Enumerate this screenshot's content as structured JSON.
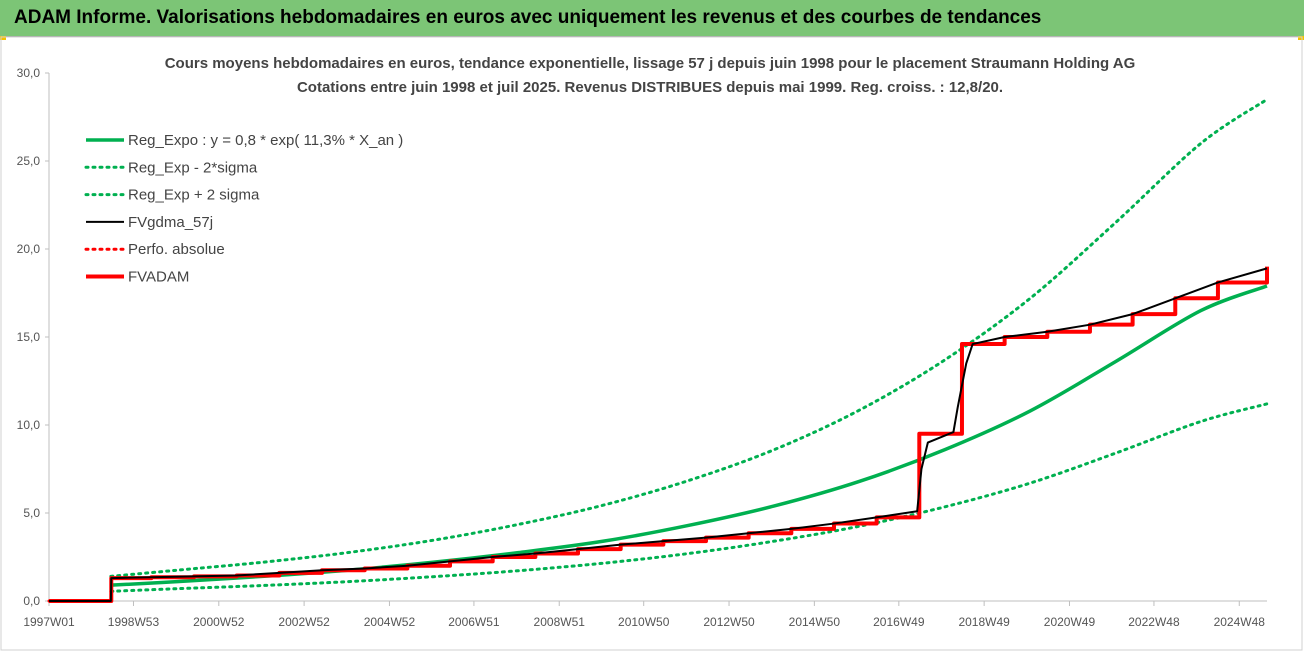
{
  "banner": {
    "title": "ADAM Informe. Valorisations hebdomadaires en euros avec uniquement les revenus et des courbes de tendances"
  },
  "colors": {
    "banner_bg": "#7cc576",
    "regression": "#00b050",
    "price": "#000000",
    "adam": "#ff0000"
  },
  "chart_data": {
    "type": "line",
    "title_lines": [
      "Cours moyens hebdomadaires en euros, tendance exponentielle, lissage 57 j depuis juin 1998 pour le placement Straumann Holding AG",
      "Cotations entre juin 1998 et juil 2025.  Revenus DISTRIBUES depuis mai 1999. Reg. croiss. : 12,8/20."
    ],
    "xlabel": "",
    "ylabel": "",
    "ylim": [
      0,
      30
    ],
    "xlim": [
      1997.0,
      2025.55
    ],
    "y_ticks": [
      "0,0",
      "5,0",
      "10,0",
      "15,0",
      "20,0",
      "25,0",
      "30,0"
    ],
    "x_ticks": [
      {
        "label": "1997W01",
        "x": 1997.0
      },
      {
        "label": "1998W53",
        "x": 1998.98
      },
      {
        "label": "2000W52",
        "x": 2000.98
      },
      {
        "label": "2002W52",
        "x": 2002.98
      },
      {
        "label": "2004W52",
        "x": 2004.98
      },
      {
        "label": "2006W51",
        "x": 2006.96
      },
      {
        "label": "2008W51",
        "x": 2008.96
      },
      {
        "label": "2010W50",
        "x": 2010.94
      },
      {
        "label": "2012W50",
        "x": 2012.94
      },
      {
        "label": "2014W50",
        "x": 2014.94
      },
      {
        "label": "2016W49",
        "x": 2016.92
      },
      {
        "label": "2018W49",
        "x": 2018.92
      },
      {
        "label": "2020W49",
        "x": 2020.92
      },
      {
        "label": "2022W48",
        "x": 2022.9
      },
      {
        "label": "2024W48",
        "x": 2024.9
      }
    ],
    "grid": false,
    "legend_position": "top-left",
    "series": [
      {
        "name": "Reg_Expo : y = 0,8 * exp( 11,3% *  X_an )",
        "style": "solid-thick",
        "color": "#00b050",
        "x": [
          1998.45,
          2000,
          2002,
          2004,
          2006,
          2008,
          2010,
          2012,
          2014,
          2016,
          2018,
          2020,
          2022,
          2024,
          2025.55
        ],
        "y": [
          0.9,
          1.1,
          1.4,
          1.75,
          2.2,
          2.75,
          3.4,
          4.3,
          5.4,
          6.8,
          8.6,
          10.8,
          13.6,
          16.5,
          17.9
        ]
      },
      {
        "name": "Reg_Exp - 2*sigma",
        "style": "dotted",
        "color": "#00b050",
        "x": [
          1998.45,
          2000,
          2002,
          2004,
          2006,
          2008,
          2010,
          2012,
          2014,
          2016,
          2018,
          2020,
          2022,
          2024,
          2025.55
        ],
        "y": [
          0.55,
          0.7,
          0.88,
          1.1,
          1.38,
          1.72,
          2.15,
          2.7,
          3.4,
          4.25,
          5.35,
          6.7,
          8.4,
          10.2,
          11.2
        ]
      },
      {
        "name": "Reg_Exp + 2 sigma",
        "style": "dotted",
        "color": "#00b050",
        "x": [
          1998.45,
          2000,
          2002,
          2004,
          2006,
          2008,
          2010,
          2012,
          2014,
          2016,
          2018,
          2020,
          2022,
          2024,
          2025.55
        ],
        "y": [
          1.4,
          1.75,
          2.2,
          2.75,
          3.45,
          4.35,
          5.45,
          6.85,
          8.6,
          10.85,
          13.7,
          17.2,
          21.5,
          26.0,
          28.5
        ]
      },
      {
        "name": "FVgdma_57j",
        "style": "solid",
        "color": "#000000",
        "x": [
          1997.0,
          1998.45,
          1998.46,
          1999.4,
          2000.4,
          2001.4,
          2002.4,
          2003.4,
          2004.4,
          2005.4,
          2006.4,
          2007.4,
          2008.4,
          2009.4,
          2010.4,
          2011.4,
          2012.4,
          2013.4,
          2014.4,
          2015.4,
          2016.4,
          2017.35,
          2017.45,
          2017.6,
          2018.2,
          2018.3,
          2018.5,
          2018.65,
          2019.4,
          2020.4,
          2021.4,
          2022.4,
          2023.4,
          2024.4,
          2025.55
        ],
        "y": [
          0.0,
          0.0,
          1.3,
          1.35,
          1.4,
          1.45,
          1.6,
          1.75,
          1.85,
          2.0,
          2.25,
          2.5,
          2.7,
          2.95,
          3.2,
          3.4,
          3.6,
          3.85,
          4.1,
          4.4,
          4.75,
          5.1,
          7.5,
          9.0,
          9.6,
          11.0,
          13.5,
          14.6,
          15.0,
          15.3,
          15.7,
          16.3,
          17.2,
          18.1,
          18.9
        ]
      },
      {
        "name": "Perfo. absolue",
        "style": "dotted",
        "color": "#ff0000",
        "x": [
          1997.0,
          1998.45,
          1998.46,
          1999.4,
          2000.4,
          2001.4,
          2002.4,
          2003.4,
          2004.4,
          2005.4,
          2006.4,
          2007.4,
          2008.4,
          2009.4,
          2010.4,
          2011.4,
          2012.4,
          2013.4,
          2014.4,
          2015.4,
          2016.4,
          2017.4,
          2018.4,
          2019.4,
          2020.4,
          2021.4,
          2022.4,
          2023.4,
          2024.4,
          2025.55
        ],
        "y": [
          0.0,
          0.0,
          1.3,
          1.35,
          1.4,
          1.45,
          1.6,
          1.75,
          1.85,
          2.0,
          2.25,
          2.5,
          2.7,
          2.95,
          3.2,
          3.4,
          3.6,
          3.85,
          4.1,
          4.4,
          4.75,
          9.5,
          14.6,
          15.0,
          15.3,
          15.7,
          16.3,
          17.2,
          18.1,
          19.0
        ]
      },
      {
        "name": "FVADAM",
        "style": "solid-thick",
        "color": "#ff0000",
        "x": [
          1997.0,
          1998.45,
          1998.46,
          1999.4,
          2000.4,
          2001.4,
          2002.4,
          2003.4,
          2004.4,
          2005.4,
          2006.4,
          2007.4,
          2008.4,
          2009.4,
          2010.4,
          2011.4,
          2012.4,
          2013.4,
          2014.4,
          2015.4,
          2016.4,
          2017.4,
          2018.4,
          2019.4,
          2020.4,
          2021.4,
          2022.4,
          2023.4,
          2024.4,
          2025.55
        ],
        "y": [
          0.0,
          0.0,
          1.3,
          1.35,
          1.4,
          1.45,
          1.6,
          1.75,
          1.85,
          2.0,
          2.25,
          2.5,
          2.7,
          2.95,
          3.2,
          3.4,
          3.6,
          3.85,
          4.1,
          4.4,
          4.75,
          9.5,
          14.6,
          15.0,
          15.3,
          15.7,
          16.3,
          17.2,
          18.1,
          19.0
        ]
      }
    ]
  }
}
